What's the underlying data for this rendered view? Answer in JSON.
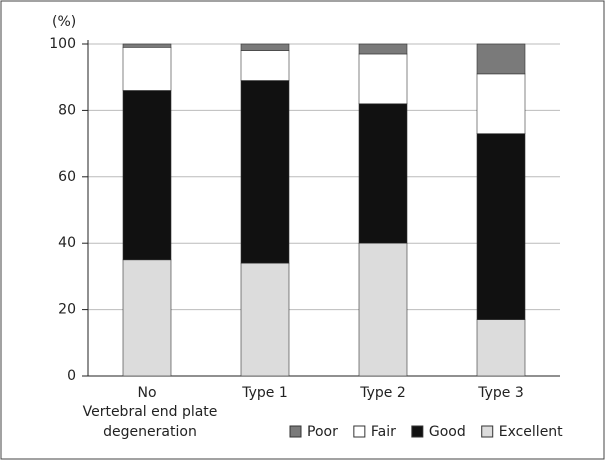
{
  "chart_data": {
    "type": "stacked_bar",
    "y_axis_label": "(%)",
    "x_axis_label": "Vertebral end plate degeneration",
    "categories": [
      "No",
      "Type 1",
      "Type 2",
      "Type 3"
    ],
    "series": [
      {
        "name": "Excellent",
        "color": "#dcdcdc",
        "values": [
          35,
          34,
          40,
          17
        ]
      },
      {
        "name": "Good",
        "color": "#111111",
        "values": [
          51,
          55,
          42,
          56
        ]
      },
      {
        "name": "Fair",
        "color": "#ffffff",
        "values": [
          13,
          9,
          15,
          18
        ]
      },
      {
        "name": "Poor",
        "color": "#7a7a7a",
        "values": [
          1,
          2,
          3,
          9
        ]
      }
    ],
    "legend_order": [
      "Poor",
      "Fair",
      "Good",
      "Excellent"
    ],
    "ylim": [
      0,
      100
    ],
    "yticks": [
      0,
      20,
      40,
      60,
      80,
      100
    ],
    "grid": true
  }
}
